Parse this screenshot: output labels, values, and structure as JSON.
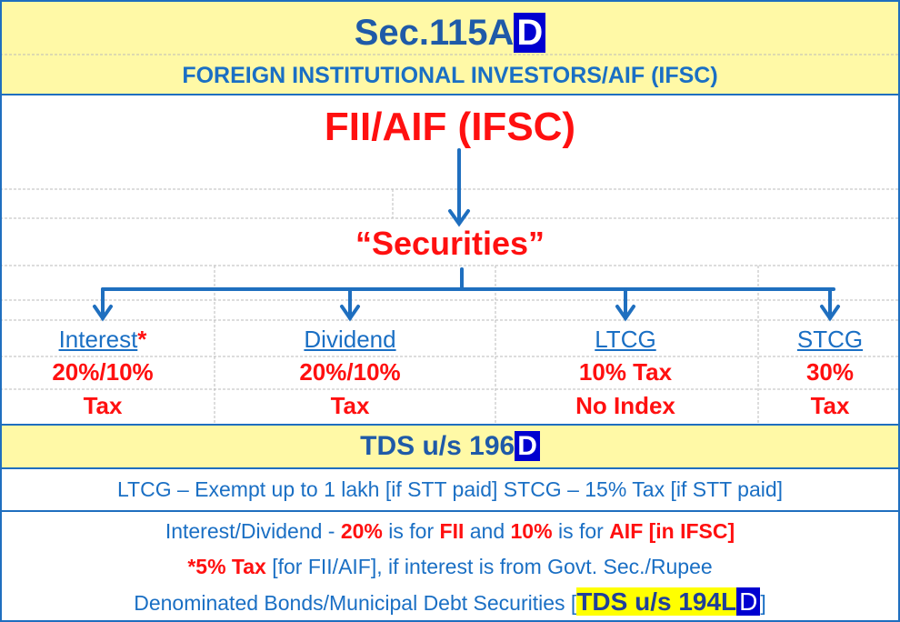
{
  "header": {
    "title": "Sec.115A",
    "title_box": "D",
    "subtitle": "FOREIGN INSTITUTIONAL INVESTORS/AIF (IFSC)"
  },
  "root": {
    "label": "FII/AIF (IFSC)",
    "node": "“Securities”"
  },
  "branches": [
    {
      "label": "Interest",
      "mark": "*",
      "lines": [
        "20%/10%",
        "Tax"
      ]
    },
    {
      "label": "Dividend",
      "lines": [
        "20%/10%",
        "Tax"
      ]
    },
    {
      "label": "LTCG",
      "lines": [
        "10% Tax",
        "No Index"
      ]
    },
    {
      "label": "STCG",
      "lines": [
        "30%",
        "Tax"
      ]
    }
  ],
  "tds": {
    "text": "TDS u/s 196",
    "box": "D"
  },
  "exempt_line": "LTCG – Exempt up to 1 lakh [if STT paid] STCG – 15% Tax [if STT paid]",
  "notes": [
    [
      {
        "text": "Interest/Dividend - ",
        "color": "blue"
      },
      {
        "text": "20%",
        "color": "red"
      },
      {
        "text": " is for ",
        "color": "blue"
      },
      {
        "text": "FII",
        "color": "red"
      },
      {
        "text": " and ",
        "color": "blue"
      },
      {
        "text": "10%",
        "color": "red"
      },
      {
        "text": " is for ",
        "color": "blue"
      },
      {
        "text": "AIF [in IFSC]",
        "color": "red"
      }
    ],
    [
      {
        "text": "*5% Tax",
        "color": "red"
      },
      {
        "text": " [for FII/AIF], if interest is from Govt. Sec./Rupee",
        "color": "blue"
      }
    ],
    [
      {
        "text": "Denominated Bonds/Municipal Debt Securities [",
        "color": "blue"
      },
      {
        "text": "TDS u/s 194L",
        "color": "highlight"
      },
      {
        "text": "D",
        "color": "box"
      },
      {
        "text": "]",
        "color": "blue"
      }
    ]
  ]
}
